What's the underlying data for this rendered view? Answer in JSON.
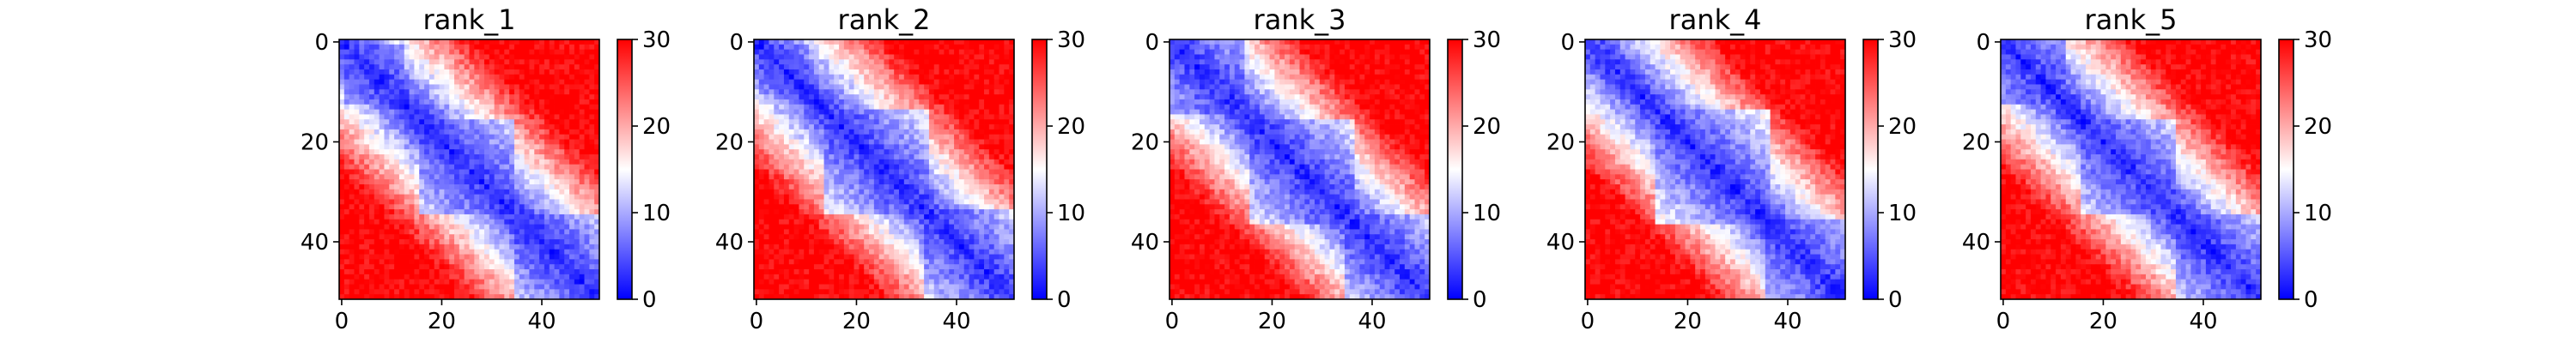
{
  "chart_data": {
    "type": "heatmap",
    "matrix_size": 52,
    "colormap": "bwr",
    "color_range": [
      0,
      30
    ],
    "xticks": [
      0,
      20,
      40
    ],
    "yticks": [
      0,
      20,
      40
    ],
    "colorbar_ticks": [
      0,
      10,
      20,
      30
    ],
    "xlim": [
      0,
      51
    ],
    "ylim": [
      51,
      0
    ],
    "grid": false,
    "panels": [
      {
        "title": "rank_1",
        "blocks": [
          [
            1,
            12
          ],
          [
            16,
            34
          ],
          [
            35,
            51
          ]
        ]
      },
      {
        "title": "rank_2",
        "blocks": [
          [
            1,
            10
          ],
          [
            14,
            34
          ],
          [
            34,
            51
          ]
        ]
      },
      {
        "title": "rank_3",
        "blocks": [
          [
            0,
            14
          ],
          [
            16,
            36
          ],
          [
            35,
            51
          ]
        ]
      },
      {
        "title": "rank_4",
        "blocks": [
          [
            14,
            36
          ],
          [
            0,
            6
          ],
          [
            36,
            51
          ]
        ]
      },
      {
        "title": "rank_5",
        "blocks": [
          [
            0,
            12
          ],
          [
            16,
            34
          ],
          [
            35,
            51
          ]
        ]
      }
    ]
  },
  "colors": {
    "low": "#0000ff",
    "mid": "#ffffff",
    "high": "#ff0000"
  }
}
